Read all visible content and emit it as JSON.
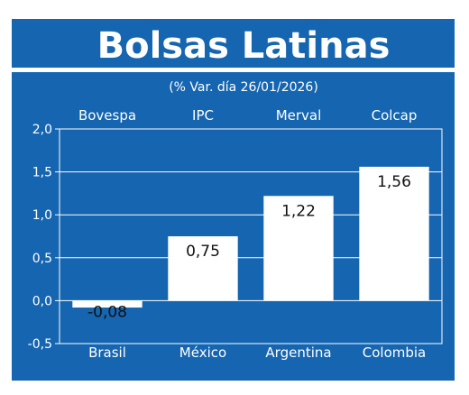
{
  "chart_data": {
    "type": "bar",
    "title": "Bolsas Latinas",
    "subtitle": "(% Var. día 26/01/2026)",
    "indices": [
      "Bovespa",
      "IPC",
      "Merval",
      "Colcap"
    ],
    "categories": [
      "Brasil",
      "México",
      "Argentina",
      "Colombia"
    ],
    "values": [
      -0.08,
      0.75,
      1.22,
      1.56
    ],
    "value_labels": [
      "-0,08",
      "0,75",
      "1,22",
      "1,56"
    ],
    "ylim": [
      -0.5,
      2.0
    ],
    "yticks": [
      2.0,
      1.5,
      1.0,
      0.5,
      0.0,
      -0.5
    ],
    "ytick_labels": [
      "2,0",
      "1,5",
      "1,0",
      "0,5",
      "0,0",
      "-0,5"
    ],
    "grid": true,
    "colors": {
      "background": "#1565b0",
      "bars": "#ffffff",
      "text": "#ffffff",
      "value_text": "#111111"
    }
  }
}
